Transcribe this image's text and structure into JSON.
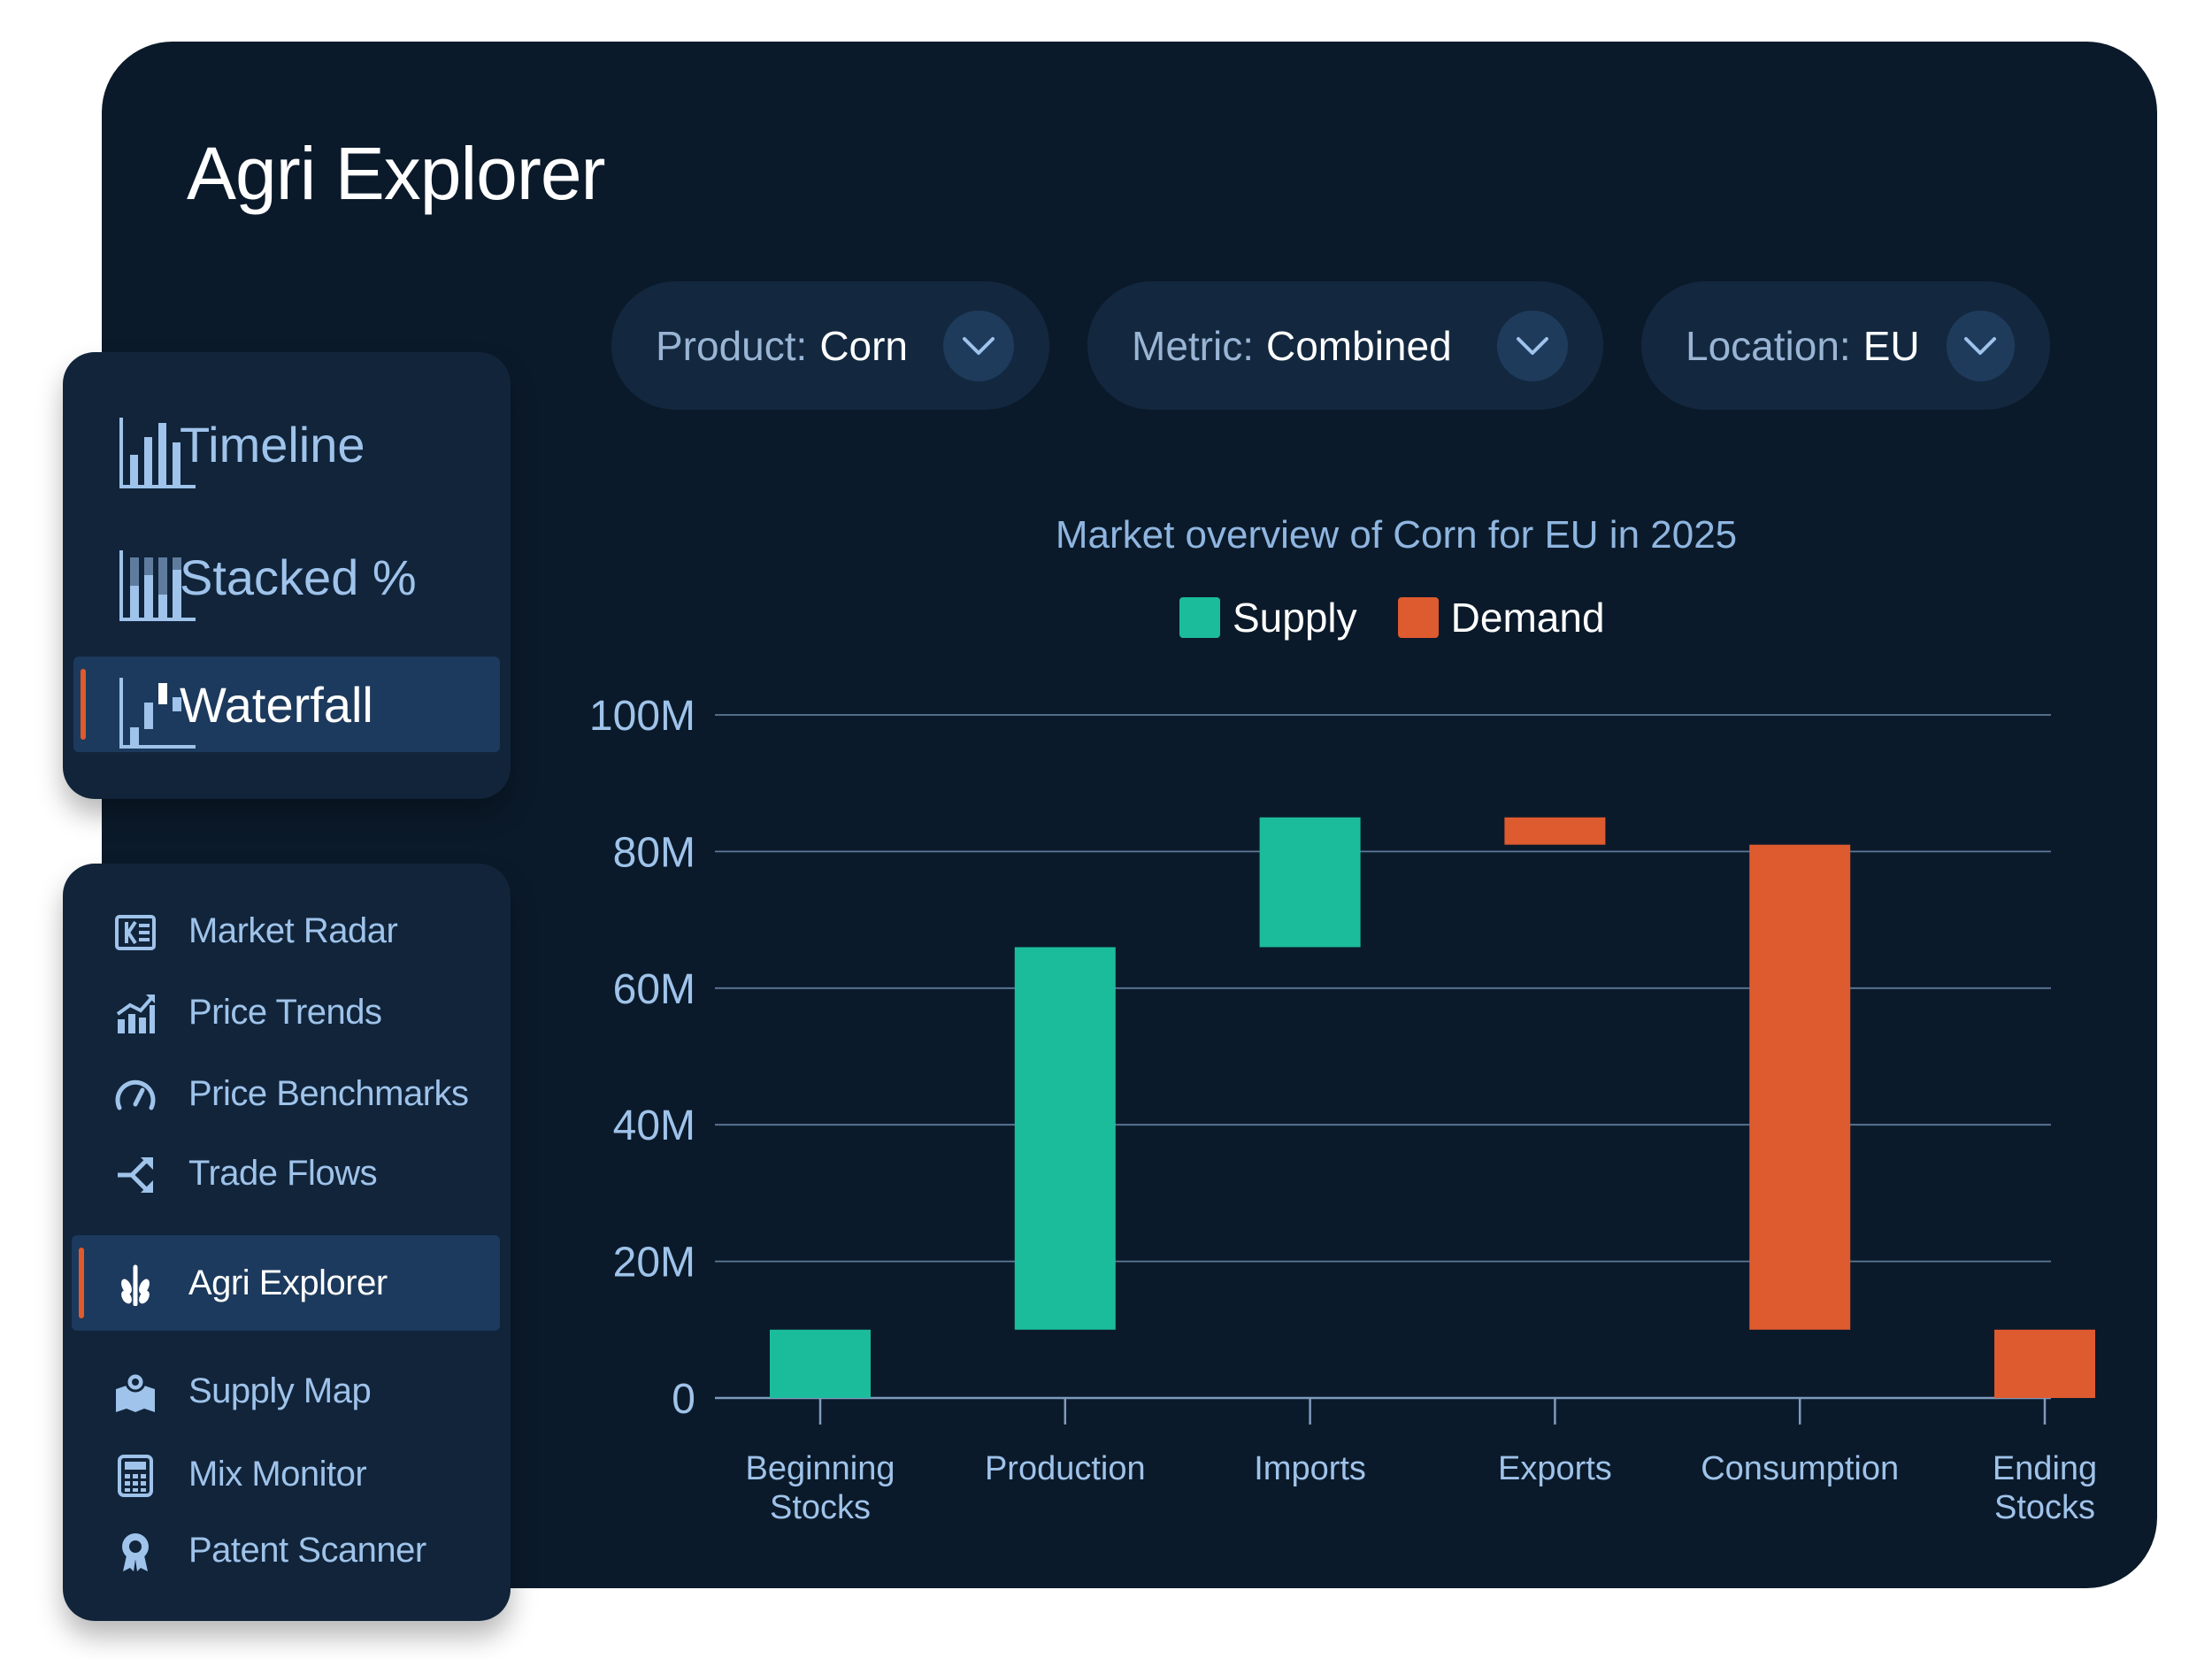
{
  "app": {
    "title": "Agri Explorer"
  },
  "filters": [
    {
      "label": "Product:",
      "value": "Corn",
      "icon": "chevron-down-icon"
    },
    {
      "label": "Metric:",
      "value": "Combined",
      "icon": "chevron-down-icon"
    },
    {
      "label": "Location:",
      "value": "EU",
      "icon": "chevron-down-icon"
    }
  ],
  "view_modes": [
    {
      "label": "Timeline",
      "icon": "bar-chart-icon",
      "active": false
    },
    {
      "label": "Stacked %",
      "icon": "stacked-bar-icon",
      "active": false
    },
    {
      "label": "Waterfall",
      "icon": "waterfall-icon",
      "active": true
    }
  ],
  "nav": [
    {
      "label": "Market Radar",
      "icon": "market-radar-icon",
      "active": false
    },
    {
      "label": "Price Trends",
      "icon": "price-trends-icon",
      "active": false
    },
    {
      "label": "Price Benchmarks",
      "icon": "gauge-icon",
      "active": false
    },
    {
      "label": "Trade Flows",
      "icon": "trade-flows-icon",
      "active": false
    },
    {
      "label": "Agri Explorer",
      "icon": "wheat-icon",
      "active": true
    },
    {
      "label": "Supply Map",
      "icon": "map-pin-icon",
      "active": false
    },
    {
      "label": "Mix Monitor",
      "icon": "calculator-icon",
      "active": false
    },
    {
      "label": "Patent Scanner",
      "icon": "award-icon",
      "active": false
    }
  ],
  "colors": {
    "supply": "#1bbc9b",
    "demand": "#de5a2f",
    "accent": "#e05a2c"
  },
  "chart_data": {
    "type": "bar",
    "subtype": "waterfall",
    "title": "Market overview of Corn for EU in 2025",
    "legend": [
      {
        "name": "Supply",
        "color": "#1bbc9b"
      },
      {
        "name": "Demand",
        "color": "#de5a2f"
      }
    ],
    "legend_position": "top-center",
    "categories": [
      "Beginning Stocks",
      "Production",
      "Imports",
      "Exports",
      "Consumption",
      "Ending Stocks"
    ],
    "category_lines": [
      [
        "Beginning",
        "Stocks"
      ],
      [
        "Production"
      ],
      [
        "Imports"
      ],
      [
        "Exports"
      ],
      [
        "Consumption"
      ],
      [
        "Ending",
        "Stocks"
      ]
    ],
    "bars": [
      {
        "category": "Beginning Stocks",
        "series": "Supply",
        "start": 0,
        "end": 10
      },
      {
        "category": "Production",
        "series": "Supply",
        "start": 10,
        "end": 66
      },
      {
        "category": "Imports",
        "series": "Supply",
        "start": 66,
        "end": 85
      },
      {
        "category": "Exports",
        "series": "Demand",
        "start": 85,
        "end": 81
      },
      {
        "category": "Consumption",
        "series": "Demand",
        "start": 81,
        "end": 10
      },
      {
        "category": "Ending Stocks",
        "series": "Demand",
        "start": 10,
        "end": 0
      }
    ],
    "y_unit": "millions",
    "ylim": [
      0,
      100
    ],
    "y_ticks": [
      {
        "value": 0,
        "label": "0"
      },
      {
        "value": 20,
        "label": "20M"
      },
      {
        "value": 40,
        "label": "40M"
      },
      {
        "value": 60,
        "label": "60M"
      },
      {
        "value": 80,
        "label": "80M"
      },
      {
        "value": 100,
        "label": "100M"
      }
    ],
    "grid": true,
    "xlabel": "",
    "ylabel": ""
  }
}
